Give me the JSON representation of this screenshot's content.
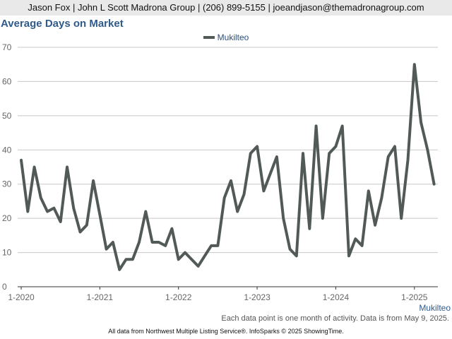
{
  "header": {
    "contact": "Jason Fox | John L Scott Madrona Group | (206) 899-5155 | joeandjason@themadronagroup.com"
  },
  "chart_data": {
    "type": "line",
    "title": "Average Days on Market",
    "xlabel": "Mukilteo",
    "ylabel": "",
    "ylim": [
      0,
      70
    ],
    "yticks": [
      0,
      10,
      20,
      30,
      40,
      50,
      60,
      70
    ],
    "xticks": [
      {
        "label": "1-2020",
        "index": 0
      },
      {
        "label": "1-2021",
        "index": 12
      },
      {
        "label": "1-2022",
        "index": 24
      },
      {
        "label": "1-2023",
        "index": 36
      },
      {
        "label": "1-2024",
        "index": 48
      },
      {
        "label": "1-2025",
        "index": 60
      }
    ],
    "grid": true,
    "legend": "top-center",
    "series": [
      {
        "name": "Mukilteo",
        "color": "#525a57",
        "values": [
          37,
          22,
          35,
          26,
          22,
          23,
          19,
          35,
          23,
          16,
          18,
          31,
          21,
          11,
          13,
          5,
          8,
          8,
          13,
          22,
          13,
          13,
          12,
          17,
          8,
          10,
          8,
          6,
          9,
          12,
          12,
          26,
          31,
          22,
          27,
          39,
          41,
          28,
          33,
          38,
          20,
          11,
          9,
          39,
          17,
          47,
          20,
          39,
          41,
          47,
          9,
          14,
          12,
          28,
          18,
          26,
          38,
          41,
          20,
          37,
          65,
          48,
          40,
          30
        ]
      }
    ]
  },
  "notes": {
    "activity": "Each data point is one month of activity. Data is from May 9, 2025.",
    "source": "All data from Northwest Multiple Listing Service®. InfoSparks © 2025 ShowingTime."
  }
}
